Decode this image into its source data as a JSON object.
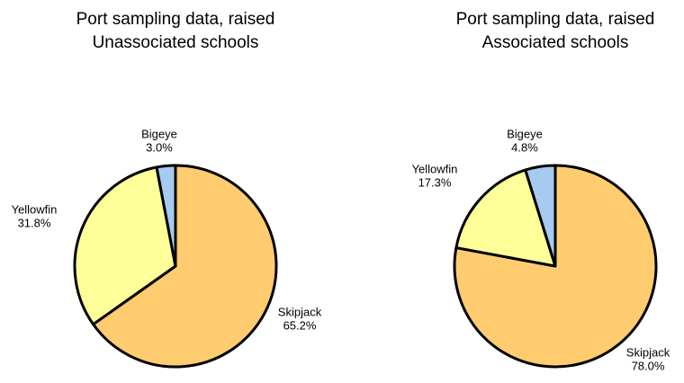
{
  "chart_data": [
    {
      "type": "pie",
      "title": "Port sampling data, raised",
      "subtitle": "Unassociated schools",
      "categories": [
        "Skipjack",
        "Yellowfin",
        "Bigeye"
      ],
      "values": [
        65.2,
        31.8,
        3.0
      ],
      "value_labels": [
        "65.2%",
        "31.8%",
        "3.0%"
      ],
      "colors": [
        "#ffcc70",
        "#ffff99",
        "#a6caf0"
      ]
    },
    {
      "type": "pie",
      "title": "Port sampling data, raised",
      "subtitle": "Associated schools",
      "categories": [
        "Skipjack",
        "Yellowfin",
        "Bigeye"
      ],
      "values": [
        78.0,
        17.3,
        4.8
      ],
      "value_labels": [
        "78.0%",
        "17.3%",
        "4.8%"
      ],
      "colors": [
        "#ffcc70",
        "#ffff99",
        "#a6caf0"
      ]
    }
  ]
}
